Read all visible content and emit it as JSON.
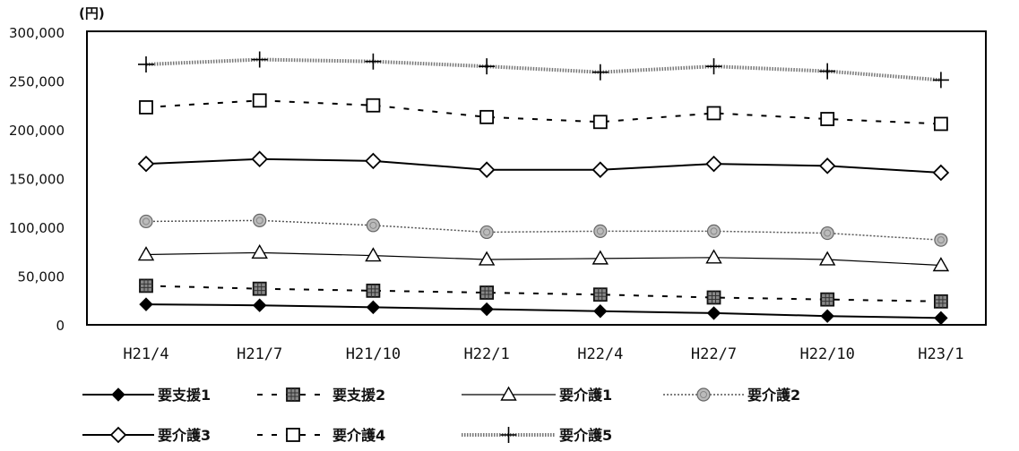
{
  "chart_data": {
    "type": "line",
    "unit_label": "(円)",
    "categories": [
      "H21/4",
      "H21/7",
      "H21/10",
      "H22/1",
      "H22/4",
      "H22/7",
      "H22/10",
      "H23/1"
    ],
    "ylim": [
      0,
      300000
    ],
    "yticks": [
      0,
      50000,
      100000,
      150000,
      200000,
      250000,
      300000
    ],
    "ytick_labels": [
      "0",
      "50,000",
      "100,000",
      "150,000",
      "200,000",
      "250,000",
      "300,000"
    ],
    "grid": false,
    "legend_position": "bottom",
    "series": [
      {
        "name": "要支援1",
        "values": [
          21000,
          20000,
          18000,
          16000,
          14000,
          12000,
          9000,
          7000
        ],
        "marker": "diamond-filled",
        "line": "solid",
        "color": "#000000"
      },
      {
        "name": "要支援2",
        "values": [
          40000,
          37000,
          35000,
          33000,
          31000,
          28000,
          26000,
          24000
        ],
        "marker": "square-hatched",
        "line": "dashed",
        "color": "#000000"
      },
      {
        "name": "要介護1",
        "values": [
          72000,
          74000,
          71000,
          67000,
          68000,
          69000,
          67000,
          61000
        ],
        "marker": "triangle-open",
        "line": "thin",
        "color": "#000000"
      },
      {
        "name": "要介護2",
        "values": [
          106000,
          107000,
          102000,
          95000,
          96000,
          96000,
          94000,
          87000
        ],
        "marker": "circle-dotted",
        "line": "dotted",
        "color": "#555555"
      },
      {
        "name": "要介護3",
        "values": [
          165000,
          170000,
          168000,
          159000,
          159000,
          165000,
          163000,
          156000
        ],
        "marker": "diamond-open",
        "line": "solid",
        "color": "#000000"
      },
      {
        "name": "要介護4",
        "values": [
          223000,
          230000,
          225000,
          213000,
          208000,
          217000,
          211000,
          206000
        ],
        "marker": "square-open",
        "line": "dashed",
        "color": "#000000"
      },
      {
        "name": "要介護5",
        "values": [
          267000,
          272000,
          270000,
          265000,
          259000,
          265000,
          260000,
          251000
        ],
        "marker": "plus",
        "line": "textured",
        "color": "#555555"
      }
    ]
  }
}
